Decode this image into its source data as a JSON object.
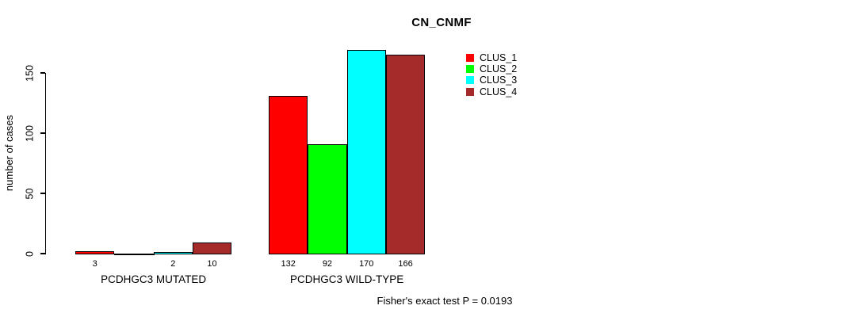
{
  "chart_data": {
    "type": "bar",
    "title": "CN_CNMF",
    "ylabel": "number of cases",
    "xlabel": "",
    "categories": [
      "PCDHGC3 MUTATED",
      "PCDHGC3 WILD-TYPE"
    ],
    "series": [
      {
        "name": "CLUS_1",
        "color": "#FF0000",
        "values": [
          3,
          132
        ]
      },
      {
        "name": "CLUS_2",
        "color": "#00FF00",
        "values": [
          0,
          92
        ]
      },
      {
        "name": "CLUS_3",
        "color": "#00FFFF",
        "values": [
          2,
          170
        ]
      },
      {
        "name": "CLUS_4",
        "color": "#A52A2A",
        "values": [
          10,
          166
        ]
      }
    ],
    "bar_labels": [
      [
        "3",
        "",
        "2",
        "10"
      ],
      [
        "132",
        "92",
        "170",
        "166"
      ]
    ],
    "yticks": [
      0,
      50,
      100,
      150
    ],
    "ylim": [
      0,
      150
    ],
    "grid": false,
    "legend": {
      "position": "top-right",
      "entries": [
        "CLUS_1",
        "CLUS_2",
        "CLUS_3",
        "CLUS_4"
      ]
    },
    "annotation": "Fisher's exact test P = 0.0193"
  }
}
